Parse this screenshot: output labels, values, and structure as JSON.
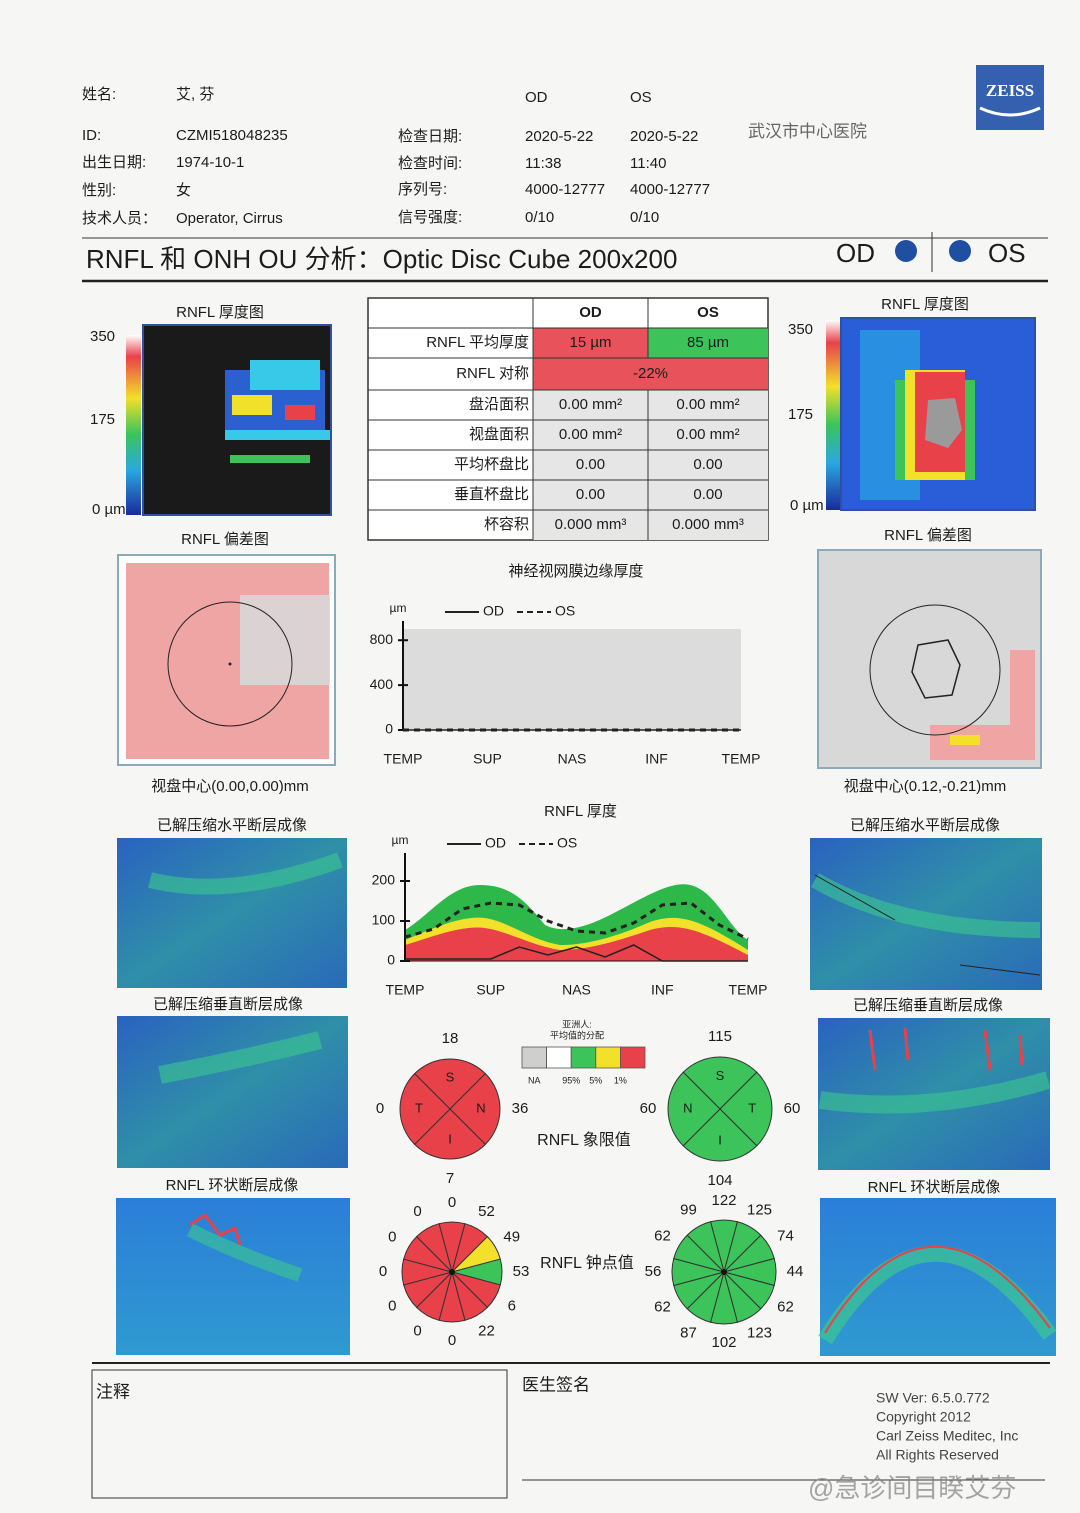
{
  "header": {
    "fields": [
      {
        "label": "姓名:",
        "value": "艾, 芬"
      },
      {
        "label": "ID:",
        "value": "CZMI518048235"
      },
      {
        "label": "出生日期:",
        "value": "1974-10-1"
      },
      {
        "label": "性别:",
        "value": "女"
      },
      {
        "label": "技术人员：",
        "value": "Operator, Cirrus"
      }
    ],
    "eyes": [
      "OD",
      "OS"
    ],
    "exam": [
      {
        "label": "检查日期:",
        "od": "2020-5-22",
        "os": "2020-5-22"
      },
      {
        "label": "检查时间:",
        "od": "11:38",
        "os": "11:40"
      },
      {
        "label": "序列号:",
        "od": "4000-12777",
        "os": "4000-12777"
      },
      {
        "label": "信号强度:",
        "od": "0/10",
        "os": "0/10"
      }
    ],
    "hospital": "武汉市中心医院",
    "logo": "ZEISS"
  },
  "title": "RNFL 和 ONH OU 分析：Optic Disc Cube 200x200",
  "title_eyes": [
    "OD",
    "OS"
  ],
  "eyes": [
    {
      "thickness_title": "RNFL 厚度图",
      "scale_labels": [
        "350",
        "175",
        "0 µm"
      ],
      "deviation_title": "RNFL 偏差图",
      "disc_center": "视盘中心(0.00,0.00)mm",
      "horizontal_title": "已解压缩水平断层成像",
      "vertical_title": "已解压缩垂直断层成像",
      "circular_title": "RNFL 环状断层成像"
    },
    {
      "thickness_title": "RNFL 厚度图",
      "scale_labels": [
        "350",
        "175",
        "0 µm"
      ],
      "deviation_title": "RNFL 偏差图",
      "disc_center": "视盘中心(0.12,-0.21)mm",
      "horizontal_title": "已解压缩水平断层成像",
      "vertical_title": "已解压缩垂直断层成像",
      "circular_title": "RNFL 环状断层成像"
    }
  ],
  "table": {
    "headers": [
      "OD",
      "OS"
    ],
    "rows": [
      {
        "label": "RNFL 平均厚度",
        "od": "15 µm",
        "os": "85 µm",
        "od_color": "#e8525a",
        "os_color": "#3cc45a"
      },
      {
        "label": "RNFL 对称",
        "both": "-22%",
        "both_color": "#e8525a"
      },
      {
        "label": "盘沿面积",
        "od": "0.00 mm²",
        "os": "0.00 mm²"
      },
      {
        "label": "视盘面积",
        "od": "0.00 mm²",
        "os": "0.00 mm²"
      },
      {
        "label": "平均杯盘比",
        "od": "0.00",
        "os": "0.00"
      },
      {
        "label": "垂直杯盘比",
        "od": "0.00",
        "os": "0.00"
      },
      {
        "label": "杯容积",
        "od": "0.000 mm³",
        "os": "0.000 mm³"
      }
    ]
  },
  "rim_chart": {
    "type": "line",
    "title": "神经视网膜边缘厚度",
    "y_unit": "µm",
    "categories": [
      "TEMP",
      "SUP",
      "NAS",
      "INF",
      "TEMP"
    ],
    "ylim": [
      0,
      900
    ],
    "yticks": [
      0,
      400,
      800
    ],
    "background": "#dcdcdc",
    "series": [
      {
        "name": "OD",
        "color": "#222222",
        "line_style": "solid",
        "values": [
          0,
          0,
          0,
          0,
          0,
          0,
          0,
          0,
          0,
          0,
          0,
          0,
          0
        ]
      },
      {
        "name": "OS",
        "color": "#222222",
        "line_style": "dashed",
        "values": [
          0,
          0,
          0,
          0,
          0,
          0,
          0,
          0,
          0,
          0,
          0,
          0,
          0
        ]
      }
    ]
  },
  "rnfl_chart": {
    "type": "line",
    "title": "RNFL 厚度",
    "y_unit": "µm",
    "categories": [
      "TEMP",
      "SUP",
      "NAS",
      "INF",
      "TEMP"
    ],
    "ylim": [
      0,
      250
    ],
    "yticks": [
      0,
      100,
      200
    ],
    "series": [
      {
        "name": "OD",
        "color": "#222222",
        "line_style": "solid",
        "values": [
          5,
          5,
          5,
          5,
          35,
          15,
          35,
          10,
          40,
          0,
          0,
          0,
          0
        ]
      },
      {
        "name": "OS",
        "color": "#222222",
        "line_style": "dashed",
        "values": [
          60,
          80,
          130,
          145,
          140,
          100,
          75,
          70,
          95,
          140,
          145,
          90,
          55
        ]
      }
    ]
  },
  "quadrants": {
    "title": "RNFL 象限值",
    "od": [
      {
        "label": "S",
        "value": 18,
        "color": "#e8414a"
      },
      {
        "label": "N",
        "value": 36,
        "color": "#e8414a"
      },
      {
        "label": "I",
        "value": 7,
        "color": "#e8414a"
      },
      {
        "label": "T",
        "value": 0,
        "color": "#e8414a"
      }
    ],
    "os": [
      {
        "label": "S",
        "value": 115,
        "color": "#3cc45a"
      },
      {
        "label": "T",
        "value": 60,
        "color": "#3cc45a"
      },
      {
        "label": "I",
        "value": 104,
        "color": "#3cc45a"
      },
      {
        "label": "N",
        "value": 60,
        "color": "#3cc45a"
      }
    ]
  },
  "legend": {
    "title": [
      "亚洲人:",
      "平均值的分配"
    ],
    "colors": [
      "#cfcfcf",
      "#ffffff",
      "#3cc45a",
      "#f2e02a",
      "#e8414a"
    ],
    "labels": [
      "NA",
      "95%",
      "5%",
      "1%"
    ]
  },
  "clock": {
    "title": "RNFL 钟点值",
    "od": {
      "values": [
        0,
        52,
        49,
        53,
        6,
        22,
        0,
        0,
        0,
        0,
        0,
        0
      ],
      "colors": [
        "#e8414a",
        "#e8414a",
        "#f2e02a",
        "#3cc45a",
        "#e8414a",
        "#e8414a",
        "#e8414a",
        "#e8414a",
        "#e8414a",
        "#e8414a",
        "#e8414a",
        "#e8414a"
      ]
    },
    "os": {
      "values": [
        122,
        125,
        74,
        44,
        62,
        123,
        102,
        87,
        62,
        56,
        62,
        99
      ],
      "colors": [
        "#3cc45a",
        "#3cc45a",
        "#3cc45a",
        "#3cc45a",
        "#3cc45a",
        "#3cc45a",
        "#3cc45a",
        "#3cc45a",
        "#3cc45a",
        "#3cc45a",
        "#3cc45a",
        "#3cc45a"
      ]
    }
  },
  "footer": {
    "notes": "注释",
    "signature": "医生签名",
    "software": [
      "SW Ver: 6.5.0.772",
      "Copyright 2012",
      "Carl Zeiss Meditec, Inc",
      "All Rights Reserved"
    ]
  },
  "watermark": "@急诊间目睽艾芬"
}
